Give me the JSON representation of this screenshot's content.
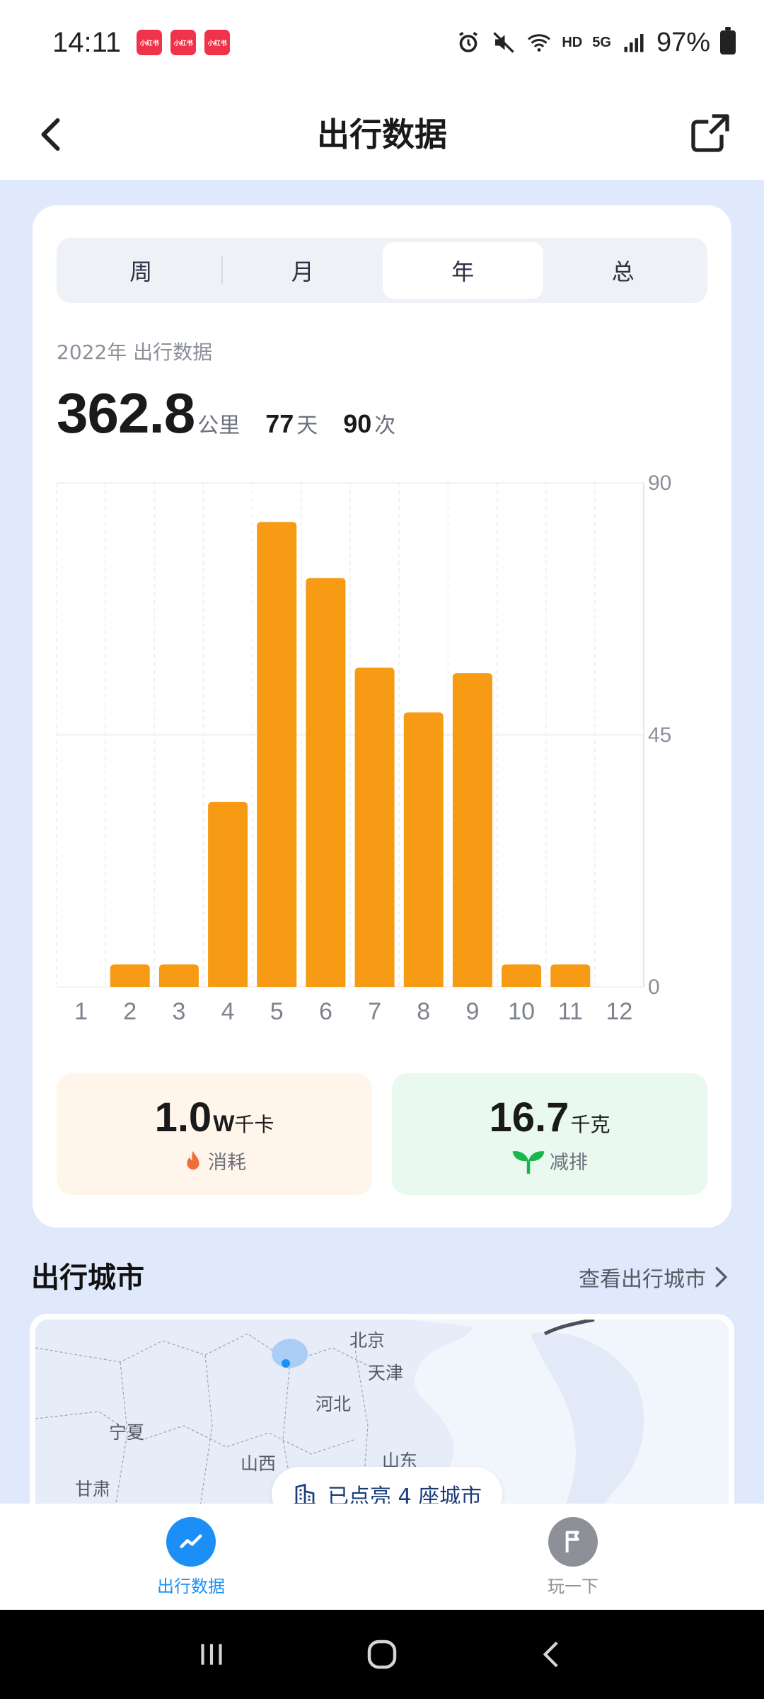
{
  "status_bar": {
    "time": "14:11",
    "notification_label": "小红书",
    "network_hd": "HD",
    "network_5g": "5G",
    "battery": "97%"
  },
  "header": {
    "title": "出行数据"
  },
  "tabs": [
    {
      "label": "周",
      "active": false
    },
    {
      "label": "月",
      "active": false
    },
    {
      "label": "年",
      "active": true
    },
    {
      "label": "总",
      "active": false
    }
  ],
  "summary": {
    "subtitle": "2022年 出行数据",
    "distance": "362.8",
    "distance_unit": "公里",
    "days": "77",
    "days_unit": "天",
    "trips": "90",
    "trips_unit": "次"
  },
  "chart_data": {
    "type": "bar",
    "categories": [
      "1",
      "2",
      "3",
      "4",
      "5",
      "6",
      "7",
      "8",
      "9",
      "10",
      "11",
      "12"
    ],
    "values": [
      0,
      4,
      4,
      33,
      83,
      73,
      57,
      49,
      56,
      4,
      4,
      0
    ],
    "ylim": [
      0,
      90
    ],
    "yticks": [
      "90",
      "45",
      "0"
    ],
    "y_axis_side": "right",
    "bar_color": "#f79a14",
    "grid": true
  },
  "metrics": {
    "calories": {
      "value": "1.0",
      "unit_prefix": "W",
      "unit": "千卡",
      "label": "消耗"
    },
    "emission": {
      "value": "16.7",
      "unit": "千克",
      "label": "减排"
    }
  },
  "cities_section": {
    "title": "出行城市",
    "link": "查看出行城市",
    "pill": "已点亮 4 座城市",
    "map_labels": [
      "北京",
      "天津",
      "河北",
      "宁夏",
      "山西",
      "山东",
      "甘肃"
    ]
  },
  "bottom_nav": [
    {
      "label": "出行数据",
      "active": true,
      "icon": "trend-icon"
    },
    {
      "label": "玩一下",
      "active": false,
      "icon": "flag-icon"
    }
  ],
  "colors": {
    "accent_blue": "#1b8ff5",
    "bar_orange": "#f79a14",
    "inactive_gray": "#8d9096"
  }
}
